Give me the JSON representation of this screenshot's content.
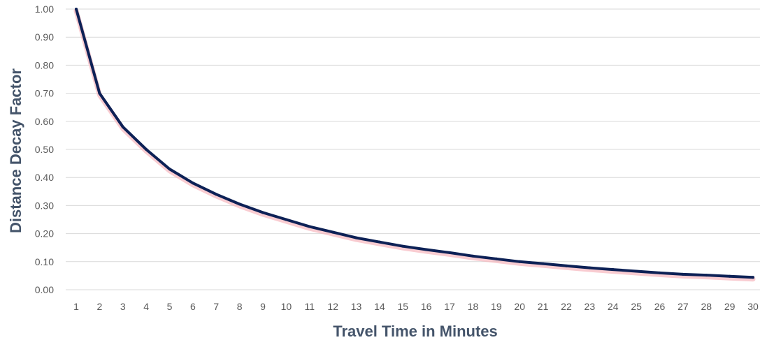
{
  "chart_data": {
    "type": "line",
    "title": "",
    "xlabel": "Travel Time in Minutes",
    "ylabel": "Distance Decay Factor",
    "x": [
      1,
      2,
      3,
      4,
      5,
      6,
      7,
      8,
      9,
      10,
      11,
      12,
      13,
      14,
      15,
      16,
      17,
      18,
      19,
      20,
      21,
      22,
      23,
      24,
      25,
      26,
      27,
      28,
      29,
      30
    ],
    "y_ticks": [
      "0.00",
      "0.10",
      "0.20",
      "0.30",
      "0.40",
      "0.50",
      "0.60",
      "0.70",
      "0.80",
      "0.90",
      "1.00"
    ],
    "ylim": [
      0,
      1
    ],
    "xlim": [
      1,
      30
    ],
    "grid": "horizontal",
    "legend": "none",
    "series": [
      {
        "values": [
          1.0,
          0.7,
          0.58,
          0.5,
          0.43,
          0.38,
          0.34,
          0.305,
          0.275,
          0.25,
          0.225,
          0.205,
          0.185,
          0.17,
          0.155,
          0.143,
          0.132,
          0.12,
          0.11,
          0.1,
          0.093,
          0.085,
          0.078,
          0.072,
          0.066,
          0.06,
          0.055,
          0.052,
          0.048,
          0.044
        ]
      }
    ]
  },
  "colors": {
    "line": "#0d2156",
    "line_glow": "#f7b7bd",
    "grid": "#d9d9d9",
    "tick_text": "#595959",
    "axis_title": "#44546a"
  }
}
